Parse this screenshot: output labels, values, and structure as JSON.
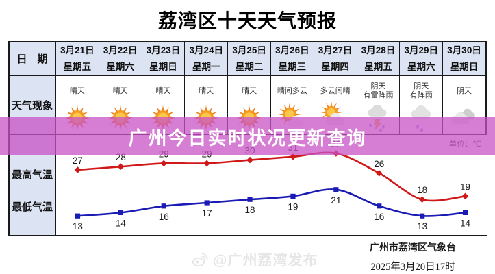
{
  "title": "荔湾区十天天气预报",
  "banner": {
    "text": "广州今日实时状况更新查询",
    "color": "#c852c6"
  },
  "table": {
    "date_header": "日　期",
    "weather_label": "天气现象",
    "high_label": "最高气温",
    "low_label": "最低气温",
    "unit": "单位：℃",
    "columns": [
      {
        "date": "3月21日",
        "weekday": "星期五",
        "weather_lines": [
          "晴天"
        ],
        "icon": "sunny-icon"
      },
      {
        "date": "3月22日",
        "weekday": "星期六",
        "weather_lines": [
          "晴天"
        ],
        "icon": "sunny-icon"
      },
      {
        "date": "3月23日",
        "weekday": "星期日",
        "weather_lines": [
          "晴天"
        ],
        "icon": "sunny-icon"
      },
      {
        "date": "3月24日",
        "weekday": "星期一",
        "weather_lines": [
          "晴天"
        ],
        "icon": "sunny-icon"
      },
      {
        "date": "3月25日",
        "weekday": "星期二",
        "weather_lines": [
          "晴天"
        ],
        "icon": "sunny-icon"
      },
      {
        "date": "3月26日",
        "weekday": "星期三",
        "weather_lines": [
          "晴间多云"
        ],
        "icon": "sun-cloud-icon"
      },
      {
        "date": "3月27日",
        "weekday": "星期四",
        "weather_lines": [
          "多云间晴"
        ],
        "icon": "cloud-sun-icon"
      },
      {
        "date": "3月28日",
        "weekday": "星期五",
        "weather_lines": [
          "阴天",
          "有雷阵雨"
        ],
        "icon": "thunder-shower-icon"
      },
      {
        "date": "3月29日",
        "weekday": "星期六",
        "weather_lines": [
          "阴天",
          "有阵雨"
        ],
        "icon": "shower-icon"
      },
      {
        "date": "3月30日",
        "weekday": "星期日",
        "weather_lines": [
          "阴天"
        ],
        "icon": "overcast-icon"
      }
    ]
  },
  "chart_data": {
    "type": "line",
    "categories": [
      "3月21日",
      "3月22日",
      "3月23日",
      "3月24日",
      "3月25日",
      "3月26日",
      "3月27日",
      "3月28日",
      "3月29日",
      "3月30日"
    ],
    "series": [
      {
        "name": "最高气温",
        "color": "#d01818",
        "marker": "diamond",
        "values": [
          27,
          28,
          29,
          29,
          30,
          31,
          32,
          26,
          18,
          19
        ]
      },
      {
        "name": "最低气温",
        "color": "#1a1ab4",
        "marker": "square",
        "values": [
          13,
          14,
          16,
          17,
          18,
          19,
          21,
          16,
          13,
          14
        ]
      }
    ],
    "unit": "℃",
    "ylim": [
      10,
      35
    ],
    "grid": false,
    "legend_position": "none",
    "title": "",
    "xlabel": "",
    "ylabel": ""
  },
  "footer": {
    "agency": "广州市荔湾区气象台",
    "issued_at": "2025年3月20日17时"
  },
  "watermark": {
    "text": "@广州荔湾发布",
    "icon": "weibo-icon"
  }
}
